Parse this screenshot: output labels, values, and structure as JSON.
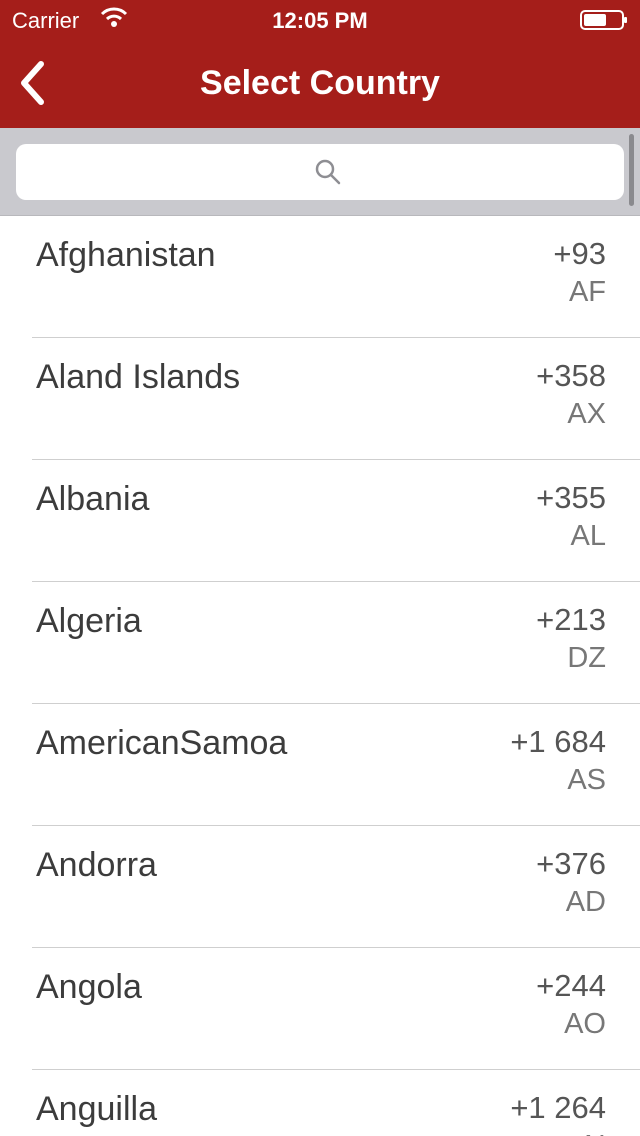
{
  "status_bar": {
    "carrier": "Carrier",
    "time": "12:05 PM"
  },
  "navbar": {
    "title": "Select Country"
  },
  "search": {
    "placeholder": ""
  },
  "colors": {
    "header": "#a51e1a",
    "search_bar_bg": "#c9c9ce"
  },
  "countries": [
    {
      "name": "Afghanistan",
      "dial_code": "+93",
      "iso": "AF"
    },
    {
      "name": "Aland Islands",
      "dial_code": "+358",
      "iso": "AX"
    },
    {
      "name": "Albania",
      "dial_code": "+355",
      "iso": "AL"
    },
    {
      "name": "Algeria",
      "dial_code": "+213",
      "iso": "DZ"
    },
    {
      "name": "AmericanSamoa",
      "dial_code": "+1 684",
      "iso": "AS"
    },
    {
      "name": "Andorra",
      "dial_code": "+376",
      "iso": "AD"
    },
    {
      "name": "Angola",
      "dial_code": "+244",
      "iso": "AO"
    },
    {
      "name": "Anguilla",
      "dial_code": "+1 264",
      "iso": "AI"
    }
  ]
}
